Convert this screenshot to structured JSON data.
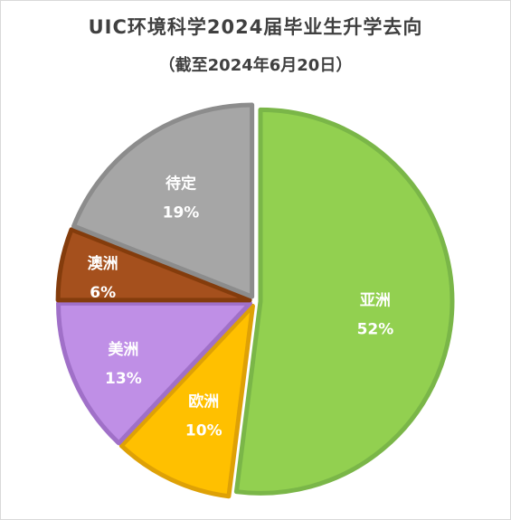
{
  "chart_data": {
    "type": "pie",
    "title": "UIC环境科学2024届毕业生升学去向",
    "subtitle": "（截至2024年6月20日）",
    "slices": [
      {
        "label": "亚洲",
        "value": 52,
        "display": "52%",
        "color": "#92d050",
        "edge": "#7ab648"
      },
      {
        "label": "欧洲",
        "value": 10,
        "display": "10%",
        "color": "#ffc000",
        "edge": "#dea106"
      },
      {
        "label": "美洲",
        "value": 13,
        "display": "13%",
        "color": "#bf8fe6",
        "edge": "#a070c8"
      },
      {
        "label": "澳洲",
        "value": 6,
        "display": "6%",
        "color": "#a5501d",
        "edge": "#843c0c"
      },
      {
        "label": "待定",
        "value": 19,
        "display": "19%",
        "color": "#a6a6a6",
        "edge": "#8c8c8c"
      }
    ],
    "start_angle_deg": 0,
    "direction": "clockwise",
    "legend": "none",
    "data_labels": "inside"
  }
}
